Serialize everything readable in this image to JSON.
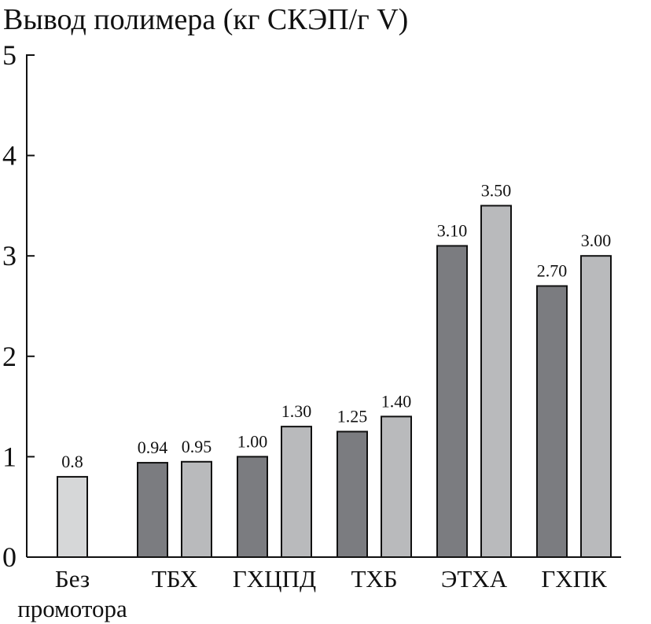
{
  "chart_data": {
    "type": "bar",
    "title": "Вывод полимера (кг СКЭП/г V)",
    "xlabel": "",
    "ylabel": "",
    "ylim": [
      0,
      5
    ],
    "yticks": [
      0,
      1,
      2,
      3,
      4,
      5
    ],
    "grid": false,
    "legend": "none",
    "colors": {
      "dark": "#7b7c80",
      "light": "#b9babc",
      "lightest": "#d6d7d8"
    },
    "categories": [
      {
        "label_lines": [
          "Без",
          "промотора"
        ],
        "bars": [
          {
            "value": 0.8,
            "label": "0.8",
            "shade": "lightest"
          }
        ]
      },
      {
        "label_lines": [
          "ТБХ"
        ],
        "bars": [
          {
            "value": 0.94,
            "label": "0.94",
            "shade": "dark"
          },
          {
            "value": 0.95,
            "label": "0.95",
            "shade": "light"
          }
        ]
      },
      {
        "label_lines": [
          "ГХЦПД"
        ],
        "bars": [
          {
            "value": 1.0,
            "label": "1.00",
            "shade": "dark"
          },
          {
            "value": 1.3,
            "label": "1.30",
            "shade": "light"
          }
        ]
      },
      {
        "label_lines": [
          "ТХБ"
        ],
        "bars": [
          {
            "value": 1.25,
            "label": "1.25",
            "shade": "dark"
          },
          {
            "value": 1.4,
            "label": "1.40",
            "shade": "light"
          }
        ]
      },
      {
        "label_lines": [
          "ЭТХА"
        ],
        "bars": [
          {
            "value": 3.1,
            "label": "3.10",
            "shade": "dark"
          },
          {
            "value": 3.5,
            "label": "3.50",
            "shade": "light"
          }
        ]
      },
      {
        "label_lines": [
          "ГХПК"
        ],
        "bars": [
          {
            "value": 2.7,
            "label": "2.70",
            "shade": "dark"
          },
          {
            "value": 3.0,
            "label": "3.00",
            "shade": "light"
          }
        ]
      }
    ]
  }
}
